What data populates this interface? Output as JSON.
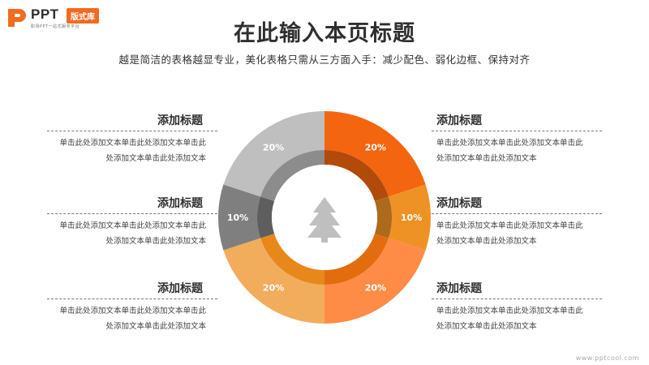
{
  "brand": {
    "name": "PPT",
    "badge": "版式库",
    "tagline": "职场PPT一站式服务平台"
  },
  "header": {
    "title": "在此输入本页标题",
    "subtitle": "越是简洁的表格越显专业，美化表格只需从三方面入手：减少配色、弱化边框、保持对齐"
  },
  "blocks": [
    {
      "title": "添加标题",
      "line1": "单击此处添加文本单击此处添加文本单击此",
      "line2": "处添加文本单击此处添加文本"
    },
    {
      "title": "添加标题",
      "line1": "单击此处添加文本单击此处添加文本单击此",
      "line2": "处添加文本单击此处添加文本"
    },
    {
      "title": "添加标题",
      "line1": "单击此处添加文本单击此处添加文本单击此",
      "line2": "处添加文本单击此处添加文本"
    },
    {
      "title": "添加标题",
      "line1": "单击此处添加文本单击此处添加文本单击此",
      "line2": "处添加文本单击此处添加文本"
    },
    {
      "title": "添加标题",
      "line1": "单击此处添加文本单击此处添加文本单击此",
      "line2": "处添加文本单击此处添加文本"
    },
    {
      "title": "添加标题",
      "line1": "单击此处添加文本单击此处添加文本单击此",
      "line2": "处添加文本单击此处添加文本"
    }
  ],
  "chart_data": {
    "type": "pie",
    "values": [
      20,
      10,
      20,
      20,
      10,
      20
    ],
    "labels": [
      "20%",
      "10%",
      "20%",
      "20%",
      "10%",
      "20%"
    ],
    "colors": [
      "#f4650f",
      "#ee9226",
      "#fe8c46",
      "#f2ad5c",
      "#7f7f7f",
      "#bfbfbf"
    ],
    "inner_ring_colors": [
      "#b24a0a",
      "#ad6a1c",
      "#e26d0f",
      "#e8871a",
      "#5e5e5e",
      "#8c8c8c"
    ],
    "center_icon": "tree-icon"
  },
  "watermark": "www.pptcool.com"
}
